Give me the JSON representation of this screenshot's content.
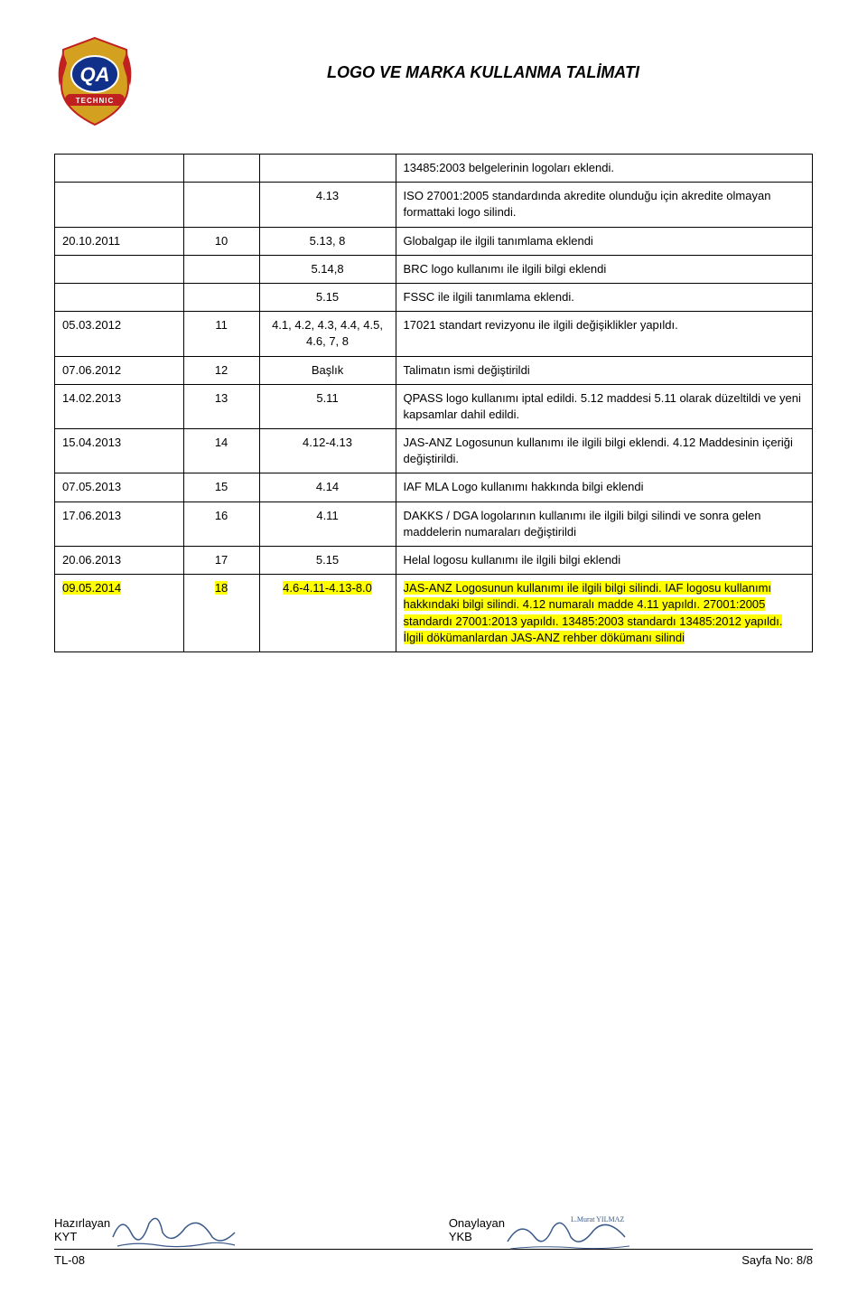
{
  "header": {
    "title": "LOGO VE MARKA KULLANMA TALİMATI"
  },
  "table": {
    "columns_width": [
      "17%",
      "10%",
      "18%",
      "55%"
    ],
    "rows": [
      {
        "date": "",
        "rev": "",
        "sec": "",
        "desc": "13485:2003 belgelerinin logoları eklendi.",
        "highlight": false
      },
      {
        "date": "",
        "rev": "",
        "sec": "4.13",
        "desc": "ISO 27001:2005 standardında akredite olunduğu için akredite olmayan formattaki logo silindi.",
        "highlight": false
      },
      {
        "date": "20.10.2011",
        "rev": "10",
        "sec": "5.13, 8",
        "desc": "Globalgap ile ilgili tanımlama eklendi",
        "highlight": false
      },
      {
        "date": "",
        "rev": "",
        "sec": "5.14,8",
        "desc": "BRC logo kullanımı ile ilgili bilgi eklendi",
        "highlight": false
      },
      {
        "date": "",
        "rev": "",
        "sec": "5.15",
        "desc": "FSSC ile ilgili tanımlama eklendi.",
        "highlight": false
      },
      {
        "date": "05.03.2012",
        "rev": "11",
        "sec": "4.1, 4.2, 4.3, 4.4, 4.5, 4.6, 7, 8",
        "desc": "17021 standart revizyonu ile ilgili değişiklikler yapıldı.",
        "highlight": false
      },
      {
        "date": "07.06.2012",
        "rev": "12",
        "sec": "Başlık",
        "desc": "Talimatın ismi değiştirildi",
        "highlight": false
      },
      {
        "date": "14.02.2013",
        "rev": "13",
        "sec": "5.11",
        "desc": "QPASS logo kullanımı iptal edildi. 5.12 maddesi 5.11 olarak düzeltildi ve yeni kapsamlar dahil edildi.",
        "highlight": false
      },
      {
        "date": "15.04.2013",
        "rev": "14",
        "sec": "4.12-4.13",
        "desc": "JAS-ANZ Logosunun kullanımı ile ilgili bilgi eklendi. 4.12 Maddesinin içeriği değiştirildi.",
        "highlight": false
      },
      {
        "date": "07.05.2013",
        "rev": "15",
        "sec": "4.14",
        "desc": "IAF MLA Logo kullanımı hakkında bilgi eklendi",
        "highlight": false
      },
      {
        "date": "17.06.2013",
        "rev": "16",
        "sec": "4.11",
        "desc": "DAKKS / DGA logolarının kullanımı ile ilgili bilgi silindi ve sonra gelen maddelerin numaraları değiştirildi",
        "highlight": false
      },
      {
        "date": "20.06.2013",
        "rev": "17",
        "sec": "5.15",
        "desc": "Helal logosu kullanımı ile ilgili bilgi eklendi",
        "highlight": false
      },
      {
        "date": "09.05.2014",
        "rev": "18",
        "sec": "4.6-4.11-4.13-8.0",
        "desc": "JAS-ANZ Logosunun kullanımı ile ilgili bilgi silindi. IAF logosu kullanımı hakkındaki bilgi silindi. 4.12 numaralı madde 4.11 yapıldı. 27001:2005 standardı 27001:2013 yapıldı. 13485:2003 standardı 13485:2012 yapıldı. İlgili dökümanlardan JAS-ANZ rehber dökümanı silindi",
        "highlight": true
      }
    ]
  },
  "footer": {
    "left_label": "Hazırlayan",
    "left_role": "KYT",
    "right_label": "Onaylayan",
    "right_role": "YKB",
    "doc_no": "TL-08",
    "page_no": "Sayfa No: 8/8"
  },
  "styling": {
    "background_color": "#ffffff",
    "text_color": "#000000",
    "border_color": "#000000",
    "highlight_color": "#ffff00",
    "body_font_size": 13,
    "title_font_size": 18,
    "logo_colors": {
      "banner": "#c02020",
      "gold": "#d4a020",
      "qa_bg": "#10308a",
      "qa_text": "#ffffff"
    }
  }
}
